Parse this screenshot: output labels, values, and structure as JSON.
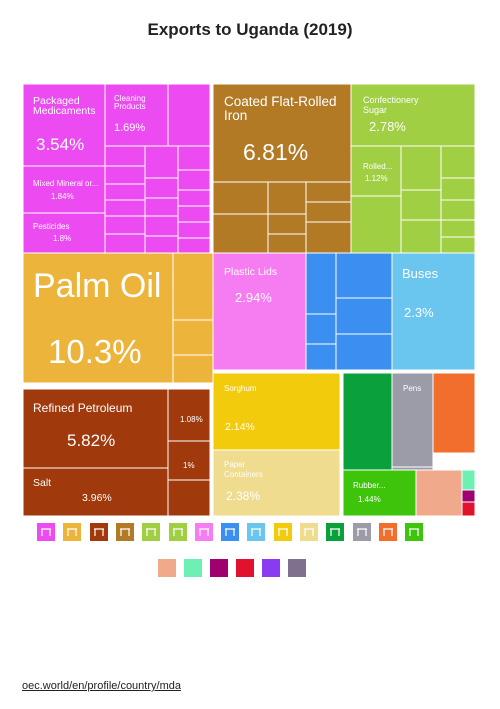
{
  "chart_data": {
    "type": "treemap",
    "title": "Exports to Uganda (2019)",
    "subtitle": "",
    "labeled_tiles": [
      {
        "label": "Packaged Medicaments",
        "value": "3.54%",
        "color": "#ed4bf2"
      },
      {
        "label": "Cleaning Products",
        "value": "1.69%",
        "color": "#ed4bf2"
      },
      {
        "label": "Mixed Mineral or...",
        "value": "1.84%",
        "color": "#ed4bf2"
      },
      {
        "label": "Pesticides",
        "value": "1.8%",
        "color": "#ed4bf2"
      },
      {
        "label": "Coated Flat-Rolled Iron",
        "value": "6.81%",
        "color": "#b37a26"
      },
      {
        "label": "Confectionery Sugar",
        "value": "2.78%",
        "color": "#a0cf44"
      },
      {
        "label": "Rolled...",
        "value": "1.12%",
        "color": "#a0cf44"
      },
      {
        "label": "Palm Oil",
        "value": "10.3%",
        "color": "#edb43c"
      },
      {
        "label": "Plastic Lids",
        "value": "2.94%",
        "color": "#f67cf2"
      },
      {
        "label": "Buses",
        "value": "2.3%",
        "color": "#6ac6ee"
      },
      {
        "label": "Refined Petroleum",
        "value": "5.82%",
        "color": "#a0390b"
      },
      {
        "label": "",
        "value": "1.08%",
        "color": "#a0390b"
      },
      {
        "label": "",
        "value": "1%",
        "color": "#a0390b"
      },
      {
        "label": "Salt",
        "value": "3.96%",
        "color": "#a0390b"
      },
      {
        "label": "Sorghum",
        "value": "2.14%",
        "color": "#f3cb0d"
      },
      {
        "label": "Paper Containers",
        "value": "2.38%",
        "color": "#efdc8e"
      },
      {
        "label": "Pens",
        "value": "",
        "color": "#9c9ca8"
      },
      {
        "label": "Rubber...",
        "value": "1.44%",
        "color": "#3ec40b"
      }
    ],
    "legend": [
      {
        "icon": "pi-icon",
        "color": "#ed4bf2"
      },
      {
        "icon": "chair-icon",
        "color": "#edb43c"
      },
      {
        "icon": "rock-icon",
        "color": "#a0390b"
      },
      {
        "icon": "metal-bar-icon",
        "color": "#b37a26"
      },
      {
        "icon": "wheat-icon",
        "color": "#a0cf44"
      },
      {
        "icon": "plant-icon",
        "color": "#a0cf44"
      },
      {
        "icon": "plastic-icon",
        "color": "#f67cf2"
      },
      {
        "icon": "machine-icon",
        "color": "#3a8ff0"
      },
      {
        "icon": "car-icon",
        "color": "#6ac6ee"
      },
      {
        "icon": "leaf-icon",
        "color": "#f3cb0d"
      },
      {
        "icon": "paper-icon",
        "color": "#efdc8e"
      },
      {
        "icon": "textile-icon",
        "color": "#0aa13c"
      },
      {
        "icon": "instrument-icon",
        "color": "#9c9ca8"
      },
      {
        "icon": "tool-icon",
        "color": "#f26e2c"
      },
      {
        "icon": "animal-icon",
        "color": "#3ec40b"
      },
      {
        "icon": "footwear-icon",
        "color": "#f0a98a"
      },
      {
        "icon": "stone-icon",
        "color": "#6ef0b4"
      },
      {
        "icon": "gem-icon",
        "color": "#a0006e"
      },
      {
        "icon": "weapon-icon",
        "color": "#e0122d"
      },
      {
        "icon": "art-icon",
        "color": "#8a3af0"
      },
      {
        "icon": "misc-icon",
        "color": "#7f7090"
      }
    ]
  },
  "source_link": "oec.world/en/profile/country/mda"
}
